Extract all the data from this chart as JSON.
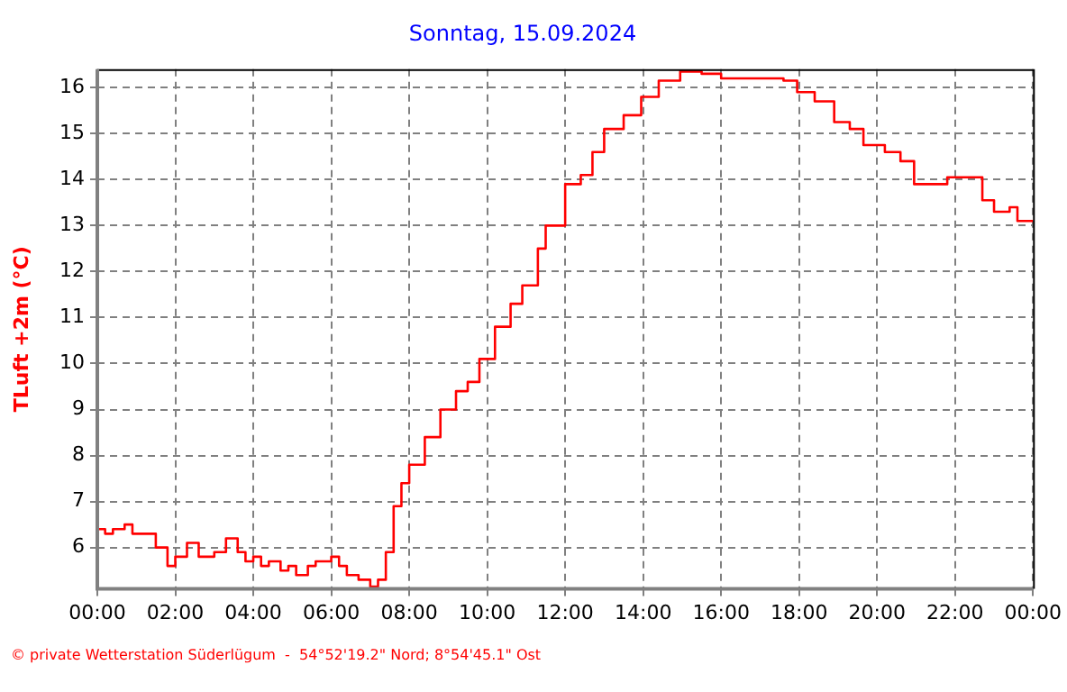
{
  "chart_data": {
    "type": "step",
    "title": "Sonntag, 15.09.2024",
    "ylabel": "TLuft +2m (°C)",
    "annotations": [
      "© private Wetterstation Süderlügum  -  54°52'19.2\" Nord; 8°54'45.1\" Ost"
    ],
    "x": [
      0,
      0.2,
      0.4,
      0.7,
      0.9,
      1.3,
      1.5,
      1.8,
      2.0,
      2.3,
      2.6,
      3.0,
      3.3,
      3.5,
      3.6,
      3.8,
      4.0,
      4.2,
      4.4,
      4.7,
      4.9,
      5.1,
      5.4,
      5.6,
      6.0,
      6.2,
      6.4,
      6.7,
      7.0,
      7.2,
      7.4,
      7.6,
      7.8,
      8.0,
      8.4,
      8.8,
      9.2,
      9.5,
      9.8,
      10.2,
      10.6,
      10.9,
      11.3,
      11.5,
      12.0,
      12.4,
      12.7,
      13.0,
      13.5,
      13.95,
      14.4,
      14.95,
      15.5,
      16.0,
      17.0,
      17.6,
      17.95,
      18.4,
      18.9,
      19.3,
      19.65,
      20.2,
      20.6,
      20.95,
      21.5,
      21.8,
      22.4,
      22.7,
      23.0,
      23.4,
      23.6,
      24.0
    ],
    "series": [
      {
        "color": "#ff0000",
        "values": [
          6.4,
          6.3,
          6.4,
          6.5,
          6.3,
          6.3,
          6.0,
          5.6,
          5.8,
          6.1,
          5.8,
          5.9,
          6.2,
          6.2,
          5.9,
          5.7,
          5.8,
          5.6,
          5.7,
          5.5,
          5.6,
          5.4,
          5.6,
          5.7,
          5.8,
          5.6,
          5.4,
          5.3,
          5.15,
          5.3,
          5.9,
          6.9,
          7.4,
          7.8,
          8.4,
          9.0,
          9.4,
          9.6,
          10.1,
          10.8,
          11.3,
          11.7,
          12.5,
          13.0,
          13.9,
          14.1,
          14.6,
          15.1,
          15.4,
          15.8,
          16.15,
          16.35,
          16.3,
          16.2,
          16.2,
          16.15,
          15.9,
          15.7,
          15.25,
          15.1,
          14.75,
          14.6,
          14.4,
          13.9,
          13.9,
          14.05,
          14.05,
          13.55,
          13.3,
          13.4,
          13.1,
          13.1
        ]
      }
    ],
    "xlim": [
      0,
      24
    ],
    "xticks": [
      {
        "value": 0,
        "label": "00:00"
      },
      {
        "value": 2,
        "label": "02:00"
      },
      {
        "value": 4,
        "label": "04:00"
      },
      {
        "value": 6,
        "label": "06:00"
      },
      {
        "value": 8,
        "label": "08:00"
      },
      {
        "value": 10,
        "label": "10:00"
      },
      {
        "value": 12,
        "label": "12:00"
      },
      {
        "value": 14,
        "label": "14:00"
      },
      {
        "value": 16,
        "label": "16:00"
      },
      {
        "value": 18,
        "label": "18:00"
      },
      {
        "value": 20,
        "label": "20:00"
      },
      {
        "value": 22,
        "label": "22:00"
      },
      {
        "value": 24,
        "label": "00:00"
      }
    ],
    "ylim": [
      5.1,
      16.4
    ],
    "yticks": [
      6,
      7,
      8,
      9,
      10,
      11,
      12,
      13,
      14,
      15,
      16
    ],
    "grid": true,
    "legend": false,
    "line_style": "solid",
    "marker": "none"
  }
}
